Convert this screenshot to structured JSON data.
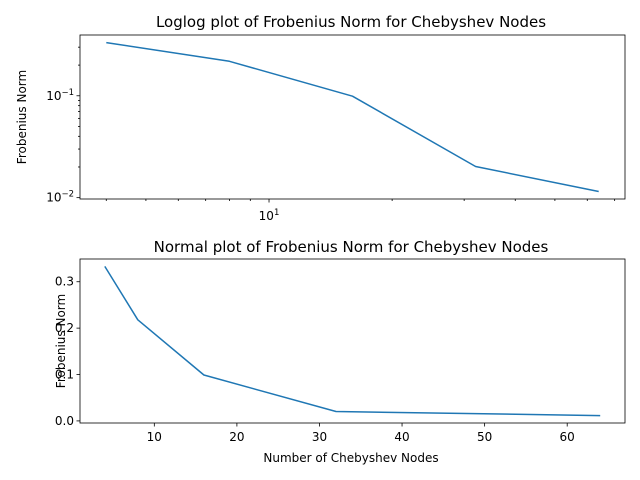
{
  "chart_data": [
    {
      "type": "line",
      "scale": "loglog",
      "title": "Loglog plot of Frobenius Norm for Chebyshev Nodes",
      "xlabel": "",
      "ylabel": "Frobenius Norm",
      "x": [
        4,
        8,
        16,
        32,
        64
      ],
      "y": [
        0.333,
        0.218,
        0.099,
        0.0202,
        0.0115
      ],
      "xlim": [
        3.45,
        74.2
      ],
      "ylim": [
        0.0097,
        0.395
      ],
      "x_major_ticks": [
        {
          "value": 10,
          "base": "10",
          "exp": "1"
        }
      ],
      "x_minor_ticks": [
        4,
        5,
        6,
        7,
        8,
        9,
        20,
        30,
        40,
        50,
        60,
        70
      ],
      "y_major_ticks": [
        {
          "value": 0.01,
          "base": "10",
          "exp": "−2"
        },
        {
          "value": 0.1,
          "base": "10",
          "exp": "−1"
        }
      ],
      "y_minor_ticks": [
        0.02,
        0.03,
        0.04,
        0.05,
        0.06,
        0.07,
        0.08,
        0.09,
        0.2,
        0.3
      ],
      "grid": false,
      "legend": "none"
    },
    {
      "type": "line",
      "scale": "linear",
      "title": "Normal plot of Frobenius Norm for Chebyshev Nodes",
      "xlabel": "Number of Chebyshev Nodes",
      "ylabel": "Frobenius Norm",
      "x": [
        4,
        8,
        16,
        32,
        64
      ],
      "y": [
        0.333,
        0.218,
        0.099,
        0.0202,
        0.0115
      ],
      "xlim": [
        1.0,
        67.0
      ],
      "ylim": [
        -0.0045,
        0.349
      ],
      "x_ticks": [
        {
          "value": 10,
          "label": "10"
        },
        {
          "value": 20,
          "label": "20"
        },
        {
          "value": 30,
          "label": "30"
        },
        {
          "value": 40,
          "label": "40"
        },
        {
          "value": 50,
          "label": "50"
        },
        {
          "value": 60,
          "label": "60"
        }
      ],
      "y_ticks": [
        {
          "value": 0.0,
          "label": "0.0"
        },
        {
          "value": 0.1,
          "label": "0.1"
        },
        {
          "value": 0.2,
          "label": "0.2"
        },
        {
          "value": 0.3,
          "label": "0.3"
        }
      ],
      "grid": false,
      "legend": "none"
    }
  ]
}
